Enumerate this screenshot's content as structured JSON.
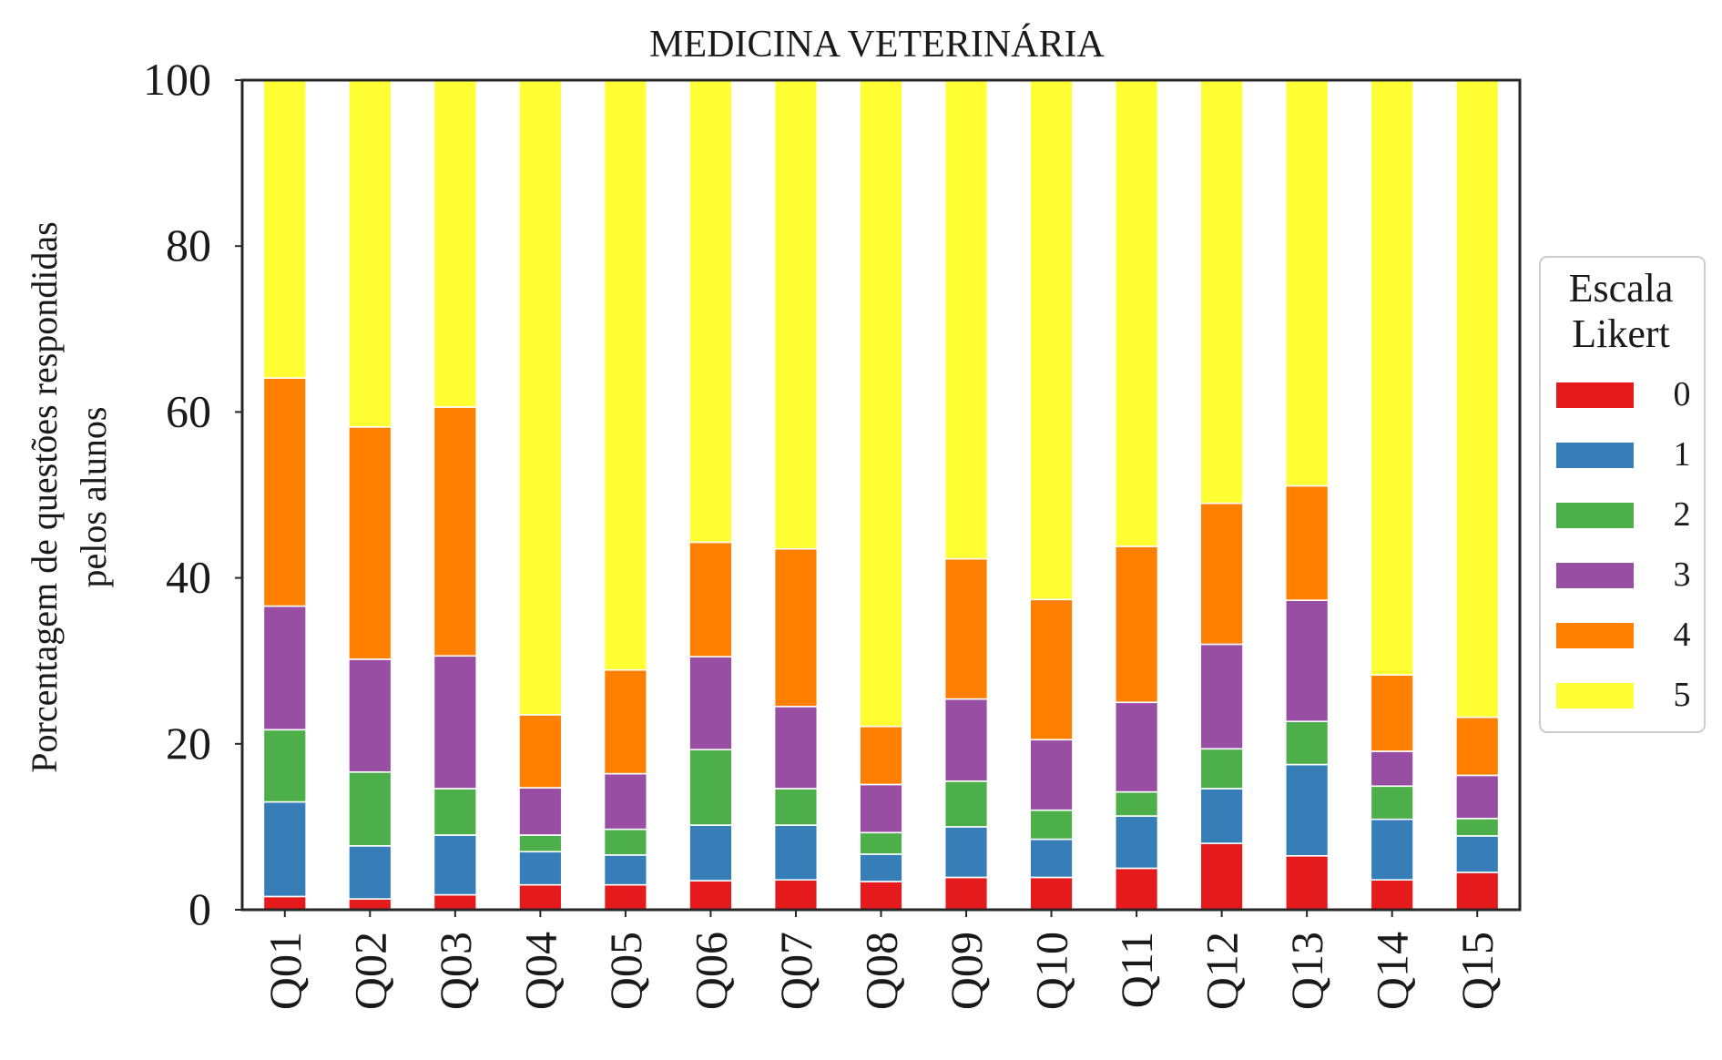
{
  "chart_data": {
    "type": "bar",
    "stacked": true,
    "title": "MEDICINA VETERINÁRIA",
    "xlabel": "",
    "ylabel": [
      "Porcentagem de questões respondidas",
      "pelos alunos"
    ],
    "ylim": [
      0,
      100
    ],
    "yticks": [
      0,
      20,
      40,
      60,
      80,
      100
    ],
    "grid": false,
    "legend": {
      "title": [
        "Escala",
        "Likert"
      ],
      "placement": "center-right, outside plot"
    },
    "categories": [
      "Q01",
      "Q02",
      "Q03",
      "Q04",
      "Q05",
      "Q06",
      "Q07",
      "Q08",
      "Q09",
      "Q10",
      "Q11",
      "Q12",
      "Q13",
      "Q14",
      "Q15"
    ],
    "series": [
      {
        "name": "0",
        "color": "#e41a1c",
        "values": [
          1.6,
          1.3,
          1.8,
          3.0,
          3.0,
          3.5,
          3.6,
          3.4,
          3.9,
          3.9,
          5.0,
          8.0,
          6.5,
          3.6,
          4.5
        ]
      },
      {
        "name": "1",
        "color": "#377eb8",
        "values": [
          11.4,
          6.4,
          7.2,
          4.0,
          3.6,
          6.7,
          6.6,
          3.3,
          6.1,
          4.6,
          6.3,
          6.6,
          11.0,
          7.3,
          4.4
        ]
      },
      {
        "name": "2",
        "color": "#4daf4a",
        "values": [
          8.7,
          8.9,
          5.6,
          2.0,
          3.1,
          9.1,
          4.4,
          2.6,
          5.5,
          3.5,
          2.9,
          4.8,
          5.2,
          4.0,
          2.1
        ]
      },
      {
        "name": "3",
        "color": "#984ea3",
        "values": [
          14.9,
          13.6,
          16.0,
          5.7,
          6.7,
          11.2,
          9.9,
          5.8,
          9.9,
          8.5,
          10.8,
          12.6,
          14.6,
          4.2,
          5.2
        ]
      },
      {
        "name": "4",
        "color": "#ff7f00",
        "values": [
          27.5,
          28.0,
          30.0,
          8.8,
          12.5,
          13.8,
          19.0,
          7.0,
          16.9,
          16.9,
          18.8,
          17.0,
          13.8,
          9.2,
          7.0
        ]
      },
      {
        "name": "5",
        "color": "#ffff33",
        "values": [
          35.9,
          41.8,
          39.4,
          76.5,
          71.1,
          55.7,
          56.5,
          77.9,
          57.7,
          62.6,
          56.2,
          51.0,
          48.9,
          71.7,
          76.8
        ]
      }
    ]
  }
}
